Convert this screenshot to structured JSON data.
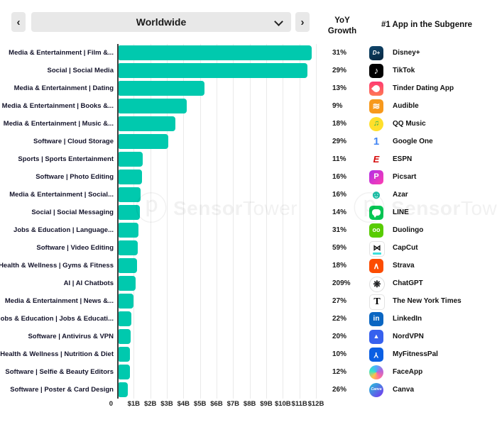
{
  "toolbar": {
    "prev_icon": "‹",
    "next_icon": "›"
  },
  "selector": {
    "value": "Worldwide"
  },
  "headers": {
    "yoy_line1": "YoY",
    "yoy_line2": "Growth",
    "app": "#1 App in the Subgenre"
  },
  "watermark": {
    "logo_glyph": "ⓟ",
    "text_bold": "Sensor",
    "text_light": "Tower"
  },
  "colors": {
    "bar": "#00c9ae",
    "axis": "#3f3f3f",
    "gridline": "#eaeaea",
    "toolbar_bg": "#e8e8e8"
  },
  "chart_data": {
    "type": "bar",
    "orientation": "horizontal",
    "title": "",
    "xlabel": "",
    "ylabel": "",
    "unit": "USD billions (revenue)",
    "xlim": [
      0,
      12.4
    ],
    "grid": true,
    "x_axis": {
      "ticks": [
        "0",
        "$1B",
        "$2B",
        "$3B",
        "$4B",
        "$5B",
        "$6B",
        "$7B",
        "$8B",
        "$9B",
        "$10B",
        "$11B",
        "$12B"
      ],
      "tick_values": [
        0,
        1,
        2,
        3,
        4,
        5,
        6,
        7,
        8,
        9,
        10,
        11,
        12
      ]
    },
    "categories": [
      "Media & Entertainment | Film &...",
      "Social | Social Media",
      "Media & Entertainment | Dating",
      "Media & Entertainment | Books &...",
      "Media & Entertainment | Music &...",
      "Software | Cloud Storage",
      "Sports | Sports Entertainment",
      "Software | Photo Editing",
      "Media & Entertainment | Social...",
      "Social | Social Messaging",
      "Jobs & Education | Language...",
      "Software | Video Editing",
      "Health & Wellness | Gyms & Fitness",
      "AI | AI Chatbots",
      "Media & Entertainment | News &...",
      "Jobs & Education | Jobs & Educati...",
      "Software | Antivirus & VPN",
      "Health & Wellness | Nutrition & Diet",
      "Software | Selfie & Beauty Editors",
      "Software | Poster & Card Design"
    ],
    "values": [
      11.65,
      11.4,
      5.2,
      4.1,
      3.45,
      3.0,
      1.45,
      1.4,
      1.32,
      1.28,
      1.2,
      1.15,
      1.1,
      1.05,
      0.9,
      0.76,
      0.72,
      0.68,
      0.68,
      0.56
    ],
    "yoy_growth": [
      "31%",
      "29%",
      "13%",
      "9%",
      "18%",
      "29%",
      "11%",
      "16%",
      "16%",
      "14%",
      "31%",
      "59%",
      "18%",
      "209%",
      "27%",
      "22%",
      "20%",
      "10%",
      "12%",
      "26%"
    ],
    "top_apps": [
      {
        "name": "Disney+",
        "icon": {
          "name": "disney-plus-icon",
          "shape": "square",
          "bg": "linear-gradient(160deg,#11486e 0%,#07263f 100%)",
          "fg": "#ffffff",
          "glyph": "D+",
          "size": 8,
          "italic": true
        }
      },
      {
        "name": "TikTok",
        "icon": {
          "name": "tiktok-icon",
          "shape": "square",
          "bg": "#010101",
          "fg": "#ffffff",
          "glyph": "♪",
          "size": 13
        }
      },
      {
        "name": "Tinder Dating App",
        "icon": {
          "name": "tinder-icon",
          "shape": "square",
          "bg": "linear-gradient(180deg,#fd3a73,#ff7854)",
          "special": "flame"
        }
      },
      {
        "name": "Audible",
        "icon": {
          "name": "audible-icon",
          "shape": "square",
          "bg": "#f7991c",
          "fg": "#ffffff",
          "glyph": "≋",
          "size": 13
        }
      },
      {
        "name": "QQ Music",
        "icon": {
          "name": "qq-music-icon",
          "shape": "circle",
          "bg": "#ffdf2b",
          "fg": "#27b24e",
          "glyph": "♫",
          "size": 11
        }
      },
      {
        "name": "Google One",
        "icon": {
          "name": "google-one-icon",
          "shape": "none",
          "bg": "transparent",
          "fg": "#4285f4",
          "glyph": "1",
          "size": 15
        }
      },
      {
        "name": "ESPN",
        "icon": {
          "name": "espn-icon",
          "shape": "none",
          "bg": "transparent",
          "fg": "#d50a0a",
          "glyph": "E",
          "size": 13,
          "italic": true
        }
      },
      {
        "name": "Picsart",
        "icon": {
          "name": "picsart-icon",
          "shape": "square",
          "bg": "linear-gradient(135deg,#b02ee8,#ff3daf)",
          "fg": "#ffffff",
          "glyph": "P",
          "size": 11
        }
      },
      {
        "name": "Azar",
        "icon": {
          "name": "azar-icon",
          "shape": "none",
          "bg": "transparent",
          "fg": "#1dbfa7",
          "glyph": "☻",
          "size": 17
        }
      },
      {
        "name": "LINE",
        "icon": {
          "name": "line-icon",
          "shape": "square",
          "bg": "#06c755",
          "special": "bubble"
        }
      },
      {
        "name": "Duolingo",
        "icon": {
          "name": "duolingo-icon",
          "shape": "square",
          "bg": "#58cc02",
          "fg": "#ffffff",
          "glyph": "oo",
          "size": 9
        }
      },
      {
        "name": "CapCut",
        "icon": {
          "name": "capcut-icon",
          "shape": "square",
          "bg": "#ffffff",
          "border": "#e3e3e3",
          "fg": "#111111",
          "glyph": "⋈",
          "size": 11,
          "accent": "#3be0dc"
        }
      },
      {
        "name": "Strava",
        "icon": {
          "name": "strava-icon",
          "shape": "square",
          "bg": "#fc4c02",
          "fg": "#ffffff",
          "glyph": "∧",
          "size": 12
        }
      },
      {
        "name": "ChatGPT",
        "icon": {
          "name": "chatgpt-icon",
          "shape": "circle",
          "bg": "#ffffff",
          "border": "#dddddd",
          "fg": "#202123",
          "glyph": "❋",
          "size": 13
        }
      },
      {
        "name": "The New York Times",
        "icon": {
          "name": "nyt-icon",
          "shape": "square",
          "bg": "#ffffff",
          "border": "#e3e3e3",
          "fg": "#000000",
          "glyph": "T",
          "size": 14,
          "serif": true
        }
      },
      {
        "name": "LinkedIn",
        "icon": {
          "name": "linkedin-icon",
          "shape": "square",
          "bg": "#0a66c2",
          "fg": "#ffffff",
          "glyph": "in",
          "size": 10
        }
      },
      {
        "name": "NordVPN",
        "icon": {
          "name": "nordvpn-icon",
          "shape": "square",
          "bg": "#3761ee",
          "fg": "#ffffff",
          "glyph": "▲",
          "size": 9
        }
      },
      {
        "name": "MyFitnessPal",
        "icon": {
          "name": "myfitnesspal-icon",
          "shape": "square",
          "bg": "#0b5fe3",
          "fg": "#ffffff",
          "glyph": "Y",
          "size": 11,
          "rotate": 180
        }
      },
      {
        "name": "FaceApp",
        "icon": {
          "name": "faceapp-icon",
          "shape": "circle",
          "bg": "conic-gradient(from 0deg,#4facfe,#b465da,#ff6b9d,#ffc246,#2ee6c8,#4facfe)"
        }
      },
      {
        "name": "Canva",
        "icon": {
          "name": "canva-icon",
          "shape": "circle",
          "bg": "linear-gradient(135deg,#23c4d8,#7a2ff0)",
          "fg": "#ffffff",
          "glyph": "Canva",
          "size": 5,
          "italic": true
        }
      }
    ],
    "legend": null
  }
}
